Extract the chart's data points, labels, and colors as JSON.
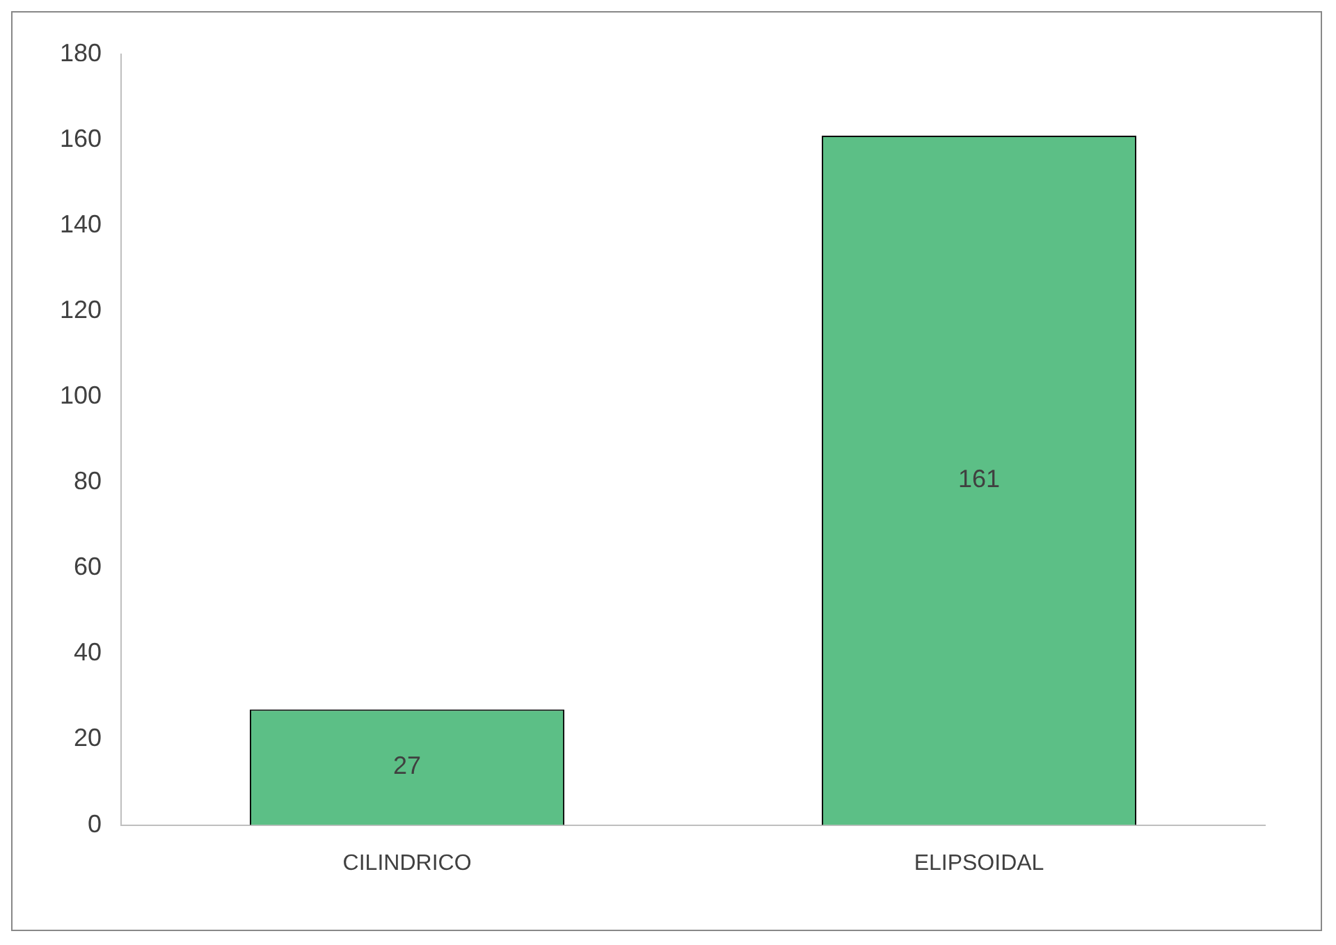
{
  "chart_data": {
    "type": "bar",
    "categories": [
      "CILINDRICO",
      "ELIPSOIDAL"
    ],
    "values": [
      27,
      161
    ],
    "color": "#5cbf86",
    "ylim": [
      0,
      180
    ],
    "yticks": [
      0,
      20,
      40,
      60,
      80,
      100,
      120,
      140,
      160,
      180
    ],
    "grid": false,
    "legend": false,
    "data_labels": true
  }
}
